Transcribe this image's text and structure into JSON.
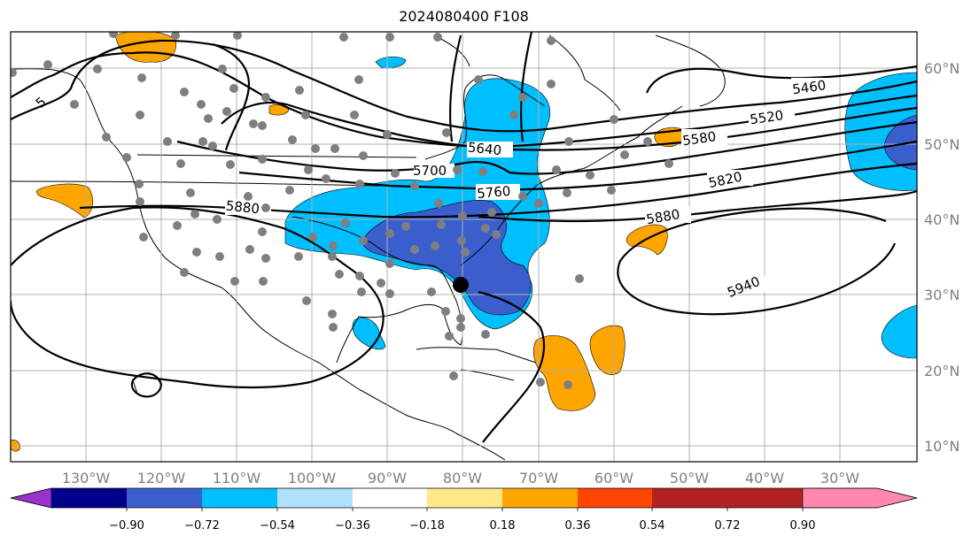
{
  "title": "2024080400 F108",
  "lon_labels": [
    "130°W",
    "120°W",
    "110°W",
    "100°W",
    "90°W",
    "80°W",
    "70°W",
    "60°W",
    "50°W",
    "40°W",
    "30°W"
  ],
  "lat_labels": [
    "60°N",
    "50°N",
    "40°N",
    "30°N",
    "20°N",
    "10°N"
  ],
  "contour_labels": [
    "5460",
    "5520",
    "5580",
    "5640",
    "5700",
    "5760",
    "5820",
    "5880",
    "5880",
    "5940"
  ],
  "colorbar": {
    "ticks": [
      "−0.90",
      "−0.72",
      "−0.54",
      "−0.36",
      "−0.18",
      "0.18",
      "0.36",
      "0.54",
      "0.72",
      "0.90"
    ],
    "colors": [
      "#9933cc",
      "#00008b",
      "#3a5fcd",
      "#00bfff",
      "#b0e2ff",
      "#ffffff",
      "#ffe88a",
      "#ffa500",
      "#ff4500",
      "#b22222",
      "#ff88b0"
    ]
  },
  "fill_colors": {
    "pos": "#ffa500",
    "neg_light": "#00bfff",
    "neg_dark": "#3a5fcd"
  }
}
